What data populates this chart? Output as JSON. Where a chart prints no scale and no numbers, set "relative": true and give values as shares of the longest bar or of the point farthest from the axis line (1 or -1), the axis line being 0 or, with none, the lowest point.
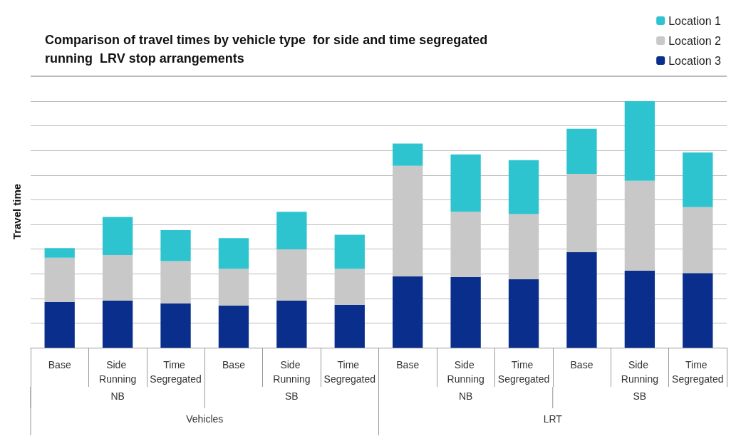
{
  "chart_data": {
    "type": "bar",
    "title": "Comparison of travel times by vehicle type  for side and time segregated\nrunning  LRV stop arrangements",
    "ylabel": "Travel time",
    "stacked": true,
    "relative": true,
    "grid": "y",
    "legend": "top right",
    "categories": [
      "Base",
      "Side Running",
      "Time Segregated",
      "Base",
      "Side Running",
      "Time Segregated",
      "Base",
      "Side Running",
      "Time Segregated",
      "Base",
      "Side Running",
      "Time Segregated"
    ],
    "annotations": [
      "NB",
      "SB",
      "NB",
      "SB",
      "Vehicles",
      "LRT"
    ],
    "series": [
      {
        "name": "Location 3",
        "color": "#0a2e8c",
        "values": [
          0.185,
          0.191,
          0.18,
          0.171,
          0.191,
          0.174,
          0.289,
          0.287,
          0.278,
          0.388,
          0.312,
          0.303
        ]
      },
      {
        "name": "Location 2",
        "color": "#c8c8c8",
        "values": [
          0.18,
          0.185,
          0.171,
          0.149,
          0.208,
          0.146,
          0.449,
          0.264,
          0.264,
          0.317,
          0.365,
          0.267
        ]
      },
      {
        "name": "Location 1",
        "color": "#2ec4cf",
        "values": [
          0.039,
          0.154,
          0.126,
          0.124,
          0.152,
          0.138,
          0.09,
          0.233,
          0.219,
          0.183,
          0.323,
          0.222
        ]
      }
    ]
  }
}
